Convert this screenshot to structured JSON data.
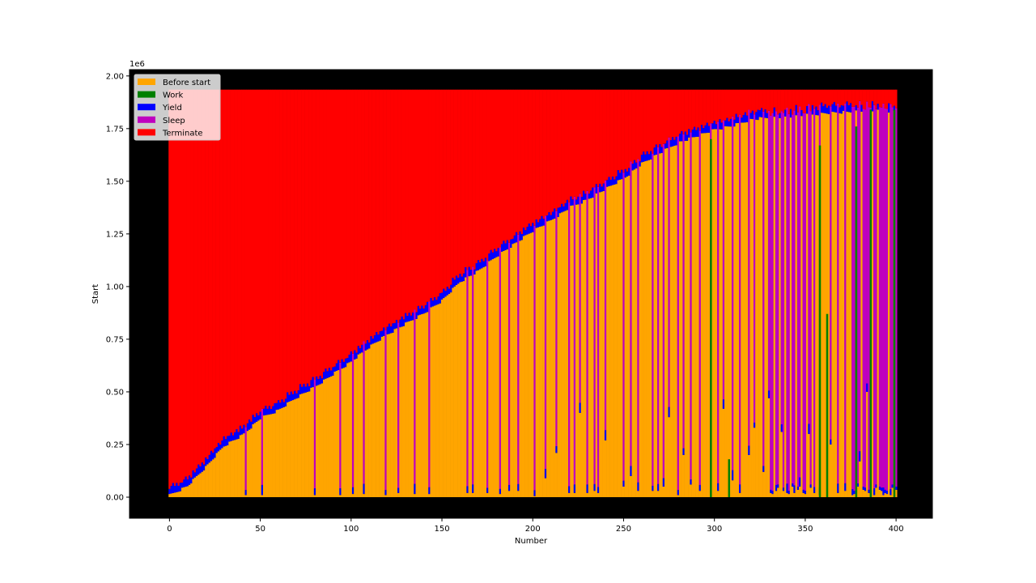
{
  "chart_data": {
    "type": "bar",
    "stacked": true,
    "xlabel": "Number",
    "ylabel": "Start",
    "y_offset_text": "1e6",
    "xlim": [
      -22,
      420
    ],
    "ylim": [
      -100000,
      2030000
    ],
    "x_ticks": [
      0,
      50,
      100,
      150,
      200,
      250,
      300,
      350,
      400
    ],
    "x_tick_labels": [
      "0",
      "50",
      "100",
      "150",
      "200",
      "250",
      "300",
      "350",
      "400"
    ],
    "y_ticks": [
      0,
      250000,
      500000,
      750000,
      1000000,
      1250000,
      1500000,
      1750000,
      2000000
    ],
    "y_tick_labels": [
      "0.00",
      "0.25",
      "0.50",
      "0.75",
      "1.00",
      "1.25",
      "1.50",
      "1.75",
      "2.00"
    ],
    "legend_position": "top-left",
    "axes_background": "#000000",
    "series_order": [
      "Before start",
      "Work",
      "Yield",
      "Sleep",
      "Terminate"
    ],
    "series_colors": {
      "Before start": "#ffa500",
      "Work": "#008000",
      "Yield": "#0000ff",
      "Sleep": "#bf00bf",
      "Terminate": "#ff0000"
    },
    "legend": [
      {
        "name": "Before start",
        "color": "#ffa500"
      },
      {
        "name": "Work",
        "color": "#008000"
      },
      {
        "name": "Yield",
        "color": "#0000ff"
      },
      {
        "name": "Sleep",
        "color": "#bf00bf"
      },
      {
        "name": "Terminate",
        "color": "#ff0000"
      }
    ],
    "bar_count": 401,
    "total_height": 1935000,
    "before_start_envelope": [
      [
        0,
        15000
      ],
      [
        10,
        60000
      ],
      [
        20,
        150000
      ],
      [
        30,
        250000
      ],
      [
        40,
        300000
      ],
      [
        50,
        380000
      ],
      [
        60,
        420000
      ],
      [
        70,
        480000
      ],
      [
        80,
        530000
      ],
      [
        90,
        590000
      ],
      [
        100,
        650000
      ],
      [
        110,
        720000
      ],
      [
        120,
        780000
      ],
      [
        130,
        830000
      ],
      [
        140,
        880000
      ],
      [
        150,
        940000
      ],
      [
        160,
        1030000
      ],
      [
        170,
        1080000
      ],
      [
        180,
        1150000
      ],
      [
        190,
        1210000
      ],
      [
        200,
        1270000
      ],
      [
        210,
        1320000
      ],
      [
        220,
        1380000
      ],
      [
        230,
        1420000
      ],
      [
        240,
        1470000
      ],
      [
        250,
        1520000
      ],
      [
        260,
        1590000
      ],
      [
        270,
        1640000
      ],
      [
        280,
        1690000
      ],
      [
        290,
        1720000
      ],
      [
        300,
        1750000
      ],
      [
        310,
        1770000
      ],
      [
        320,
        1800000
      ],
      [
        330,
        1810000
      ],
      [
        340,
        1810000
      ],
      [
        350,
        1820000
      ],
      [
        360,
        1830000
      ],
      [
        370,
        1835000
      ],
      [
        380,
        1840000
      ],
      [
        390,
        1840000
      ],
      [
        400,
        1840000
      ]
    ],
    "yield_band": 40000,
    "sleep_dips": [
      {
        "x": 42,
        "before": 10000
      },
      {
        "x": 51,
        "before": 10000
      },
      {
        "x": 80,
        "before": 10000
      },
      {
        "x": 94,
        "before": 10000
      },
      {
        "x": 101,
        "before": 15000
      },
      {
        "x": 107,
        "before": 15000
      },
      {
        "x": 119,
        "before": 10000
      },
      {
        "x": 126,
        "before": 20000
      },
      {
        "x": 135,
        "before": 15000
      },
      {
        "x": 143,
        "before": 15000
      },
      {
        "x": 164,
        "before": 20000
      },
      {
        "x": 167,
        "before": 20000
      },
      {
        "x": 175,
        "before": 20000
      },
      {
        "x": 182,
        "before": 15000
      },
      {
        "x": 187,
        "before": 30000
      },
      {
        "x": 192,
        "before": 30000
      },
      {
        "x": 201,
        "before": 5000
      },
      {
        "x": 207,
        "before": 90000
      },
      {
        "x": 213,
        "before": 210000
      },
      {
        "x": 220,
        "before": 20000
      },
      {
        "x": 223,
        "before": 20000
      },
      {
        "x": 226,
        "before": 400000
      },
      {
        "x": 230,
        "before": 20000
      },
      {
        "x": 234,
        "before": 30000
      },
      {
        "x": 236,
        "before": 20000
      },
      {
        "x": 240,
        "before": 270000
      },
      {
        "x": 250,
        "before": 50000
      },
      {
        "x": 254,
        "before": 100000
      },
      {
        "x": 258,
        "before": 30000
      },
      {
        "x": 266,
        "before": 30000
      },
      {
        "x": 269,
        "before": 30000
      },
      {
        "x": 272,
        "before": 50000
      },
      {
        "x": 275,
        "before": 380000
      },
      {
        "x": 280,
        "before": 10000
      },
      {
        "x": 283,
        "before": 200000
      },
      {
        "x": 287,
        "before": 60000
      },
      {
        "x": 292,
        "before": 30000
      },
      {
        "x": 298,
        "before": 10000
      },
      {
        "x": 302,
        "before": 30000
      },
      {
        "x": 305,
        "before": 420000
      },
      {
        "x": 310,
        "before": 80000
      },
      {
        "x": 314,
        "before": 20000
      },
      {
        "x": 319,
        "before": 200000
      },
      {
        "x": 322,
        "before": 330000
      },
      {
        "x": 327,
        "before": 120000
      },
      {
        "x": 330,
        "before": 470000
      },
      {
        "x": 334,
        "before": 30000
      },
      {
        "x": 337,
        "before": 310000
      },
      {
        "x": 340,
        "before": 20000
      },
      {
        "x": 344,
        "before": 20000
      },
      {
        "x": 347,
        "before": 50000
      },
      {
        "x": 352,
        "before": 300000
      },
      {
        "x": 355,
        "before": 20000
      },
      {
        "x": 358,
        "before": 10000
      },
      {
        "x": 364,
        "before": 250000
      },
      {
        "x": 368,
        "before": 20000
      },
      {
        "x": 372,
        "before": 30000
      },
      {
        "x": 376,
        "before": 10000
      },
      {
        "x": 380,
        "before": 170000
      },
      {
        "x": 384,
        "before": 500000
      },
      {
        "x": 388,
        "before": 10000
      },
      {
        "x": 393,
        "before": 10000
      },
      {
        "x": 397,
        "before": 10000
      }
    ],
    "sleep_block_starts": [
      330,
      375
    ],
    "work_spikes": [
      {
        "x": 298,
        "from": 0,
        "to": 1700000
      },
      {
        "x": 308,
        "from": 0,
        "to": 180000
      },
      {
        "x": 358,
        "from": 0,
        "to": 1670000
      },
      {
        "x": 362,
        "from": 0,
        "to": 870000
      },
      {
        "x": 378,
        "from": 0,
        "to": 1760000
      },
      {
        "x": 386,
        "from": 0,
        "to": 1840000
      },
      {
        "x": 399,
        "from": 0,
        "to": 1840000
      }
    ]
  }
}
